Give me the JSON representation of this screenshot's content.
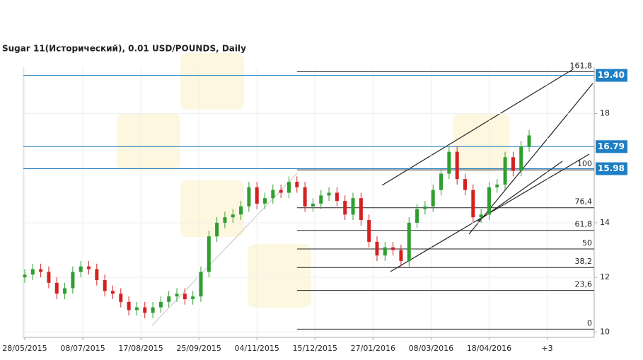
{
  "chart_data": {
    "type": "candlestick",
    "title": "Sugar 11(Исторический), 0.01 USD/POUNDS, Daily",
    "x": [
      0,
      4,
      8,
      12,
      16,
      20,
      24,
      28,
      32,
      36,
      40,
      44,
      48,
      52,
      56,
      60,
      64,
      68,
      72,
      76,
      80,
      84,
      88,
      92,
      96,
      100,
      104,
      108,
      112,
      116,
      120,
      124,
      128,
      132,
      136,
      140,
      144,
      148,
      152,
      156,
      160,
      164,
      168,
      172,
      176,
      180,
      184,
      188,
      192,
      196,
      200,
      204,
      208,
      212,
      216,
      220,
      224,
      228,
      232,
      236,
      240,
      244,
      248,
      252
    ],
    "open": [
      12.0,
      12.1,
      12.3,
      12.2,
      11.8,
      11.4,
      11.6,
      12.2,
      12.4,
      12.3,
      11.9,
      11.5,
      11.4,
      11.1,
      10.8,
      10.9,
      10.7,
      10.9,
      11.1,
      11.3,
      11.4,
      11.2,
      11.3,
      12.2,
      13.5,
      14.0,
      14.2,
      14.3,
      14.6,
      15.3,
      14.7,
      14.9,
      15.2,
      15.1,
      15.5,
      15.3,
      14.6,
      14.7,
      15.0,
      15.1,
      14.8,
      14.3,
      14.9,
      14.1,
      13.3,
      12.8,
      13.1,
      13.0,
      12.6,
      14.0,
      14.5,
      14.6,
      15.2,
      15.8,
      16.6,
      15.6,
      15.2,
      14.2,
      14.3,
      15.3,
      15.4,
      16.4,
      15.9,
      16.8
    ],
    "high": [
      12.3,
      12.5,
      12.5,
      12.4,
      12.0,
      11.8,
      12.4,
      12.6,
      12.6,
      12.5,
      12.1,
      11.7,
      11.6,
      11.3,
      11.1,
      11.1,
      11.1,
      11.3,
      11.5,
      11.6,
      11.6,
      11.5,
      12.4,
      13.7,
      14.2,
      14.4,
      14.5,
      14.8,
      15.5,
      15.5,
      15.1,
      15.4,
      15.4,
      15.7,
      15.7,
      15.5,
      14.9,
      15.2,
      15.3,
      15.3,
      15.0,
      15.1,
      15.1,
      14.3,
      13.5,
      13.3,
      13.3,
      13.2,
      14.2,
      14.7,
      14.8,
      15.4,
      16.0,
      16.8,
      16.8,
      15.8,
      15.4,
      14.5,
      15.5,
      15.6,
      16.6,
      16.6,
      17.0,
      17.4
    ],
    "low": [
      11.8,
      11.9,
      12.0,
      11.6,
      11.2,
      11.2,
      11.4,
      12.0,
      12.1,
      11.7,
      11.3,
      11.2,
      10.9,
      10.6,
      10.6,
      10.5,
      10.5,
      10.7,
      10.9,
      11.1,
      11.0,
      11.0,
      11.1,
      12.0,
      13.3,
      13.8,
      14.0,
      14.1,
      14.4,
      14.5,
      14.5,
      14.7,
      14.9,
      14.9,
      15.1,
      14.4,
      14.4,
      14.5,
      14.8,
      14.6,
      14.1,
      14.1,
      13.9,
      13.1,
      12.6,
      12.6,
      12.8,
      12.4,
      12.4,
      13.8,
      14.3,
      14.4,
      15.0,
      15.6,
      15.4,
      15.0,
      14.0,
      14.0,
      14.1,
      15.1,
      15.2,
      15.7,
      15.7,
      16.6
    ],
    "close": [
      12.1,
      12.3,
      12.2,
      11.8,
      11.4,
      11.6,
      12.2,
      12.4,
      12.3,
      11.9,
      11.5,
      11.4,
      11.1,
      10.8,
      10.9,
      10.7,
      10.9,
      11.1,
      11.3,
      11.4,
      11.2,
      11.3,
      12.2,
      13.5,
      14.0,
      14.2,
      14.3,
      14.6,
      15.3,
      14.7,
      14.9,
      15.2,
      15.1,
      15.5,
      15.3,
      14.6,
      14.7,
      15.0,
      15.1,
      14.8,
      14.3,
      14.9,
      14.1,
      13.3,
      12.8,
      13.1,
      13.0,
      12.6,
      14.0,
      14.5,
      14.6,
      15.2,
      15.8,
      16.6,
      15.6,
      15.2,
      14.2,
      14.3,
      15.3,
      15.4,
      16.4,
      15.9,
      16.8,
      17.2
    ],
    "up_color": "#2e9e2e",
    "down_color": "#d42020",
    "xlim": [
      -0.7,
      284.5
    ],
    "xticks": [
      {
        "value": 0,
        "label": "28/05/2015"
      },
      {
        "value": 29,
        "label": "08/07/2015"
      },
      {
        "value": 58,
        "label": "17/08/2015"
      },
      {
        "value": 87,
        "label": "25/09/2015"
      },
      {
        "value": 116,
        "label": "04/11/2015"
      },
      {
        "value": 145,
        "label": "15/12/2015"
      },
      {
        "value": 174,
        "label": "27/01/2016"
      },
      {
        "value": 203,
        "label": "08/03/2016"
      },
      {
        "value": 232,
        "label": "18/04/2016"
      },
      {
        "value": 261,
        "label": "+3"
      }
    ],
    "ylim": [
      9.8,
      19.7
    ],
    "yticks": [
      10,
      12,
      14,
      18
    ],
    "price_lines": [
      {
        "value": 19.4,
        "label": "19.40"
      },
      {
        "value": 16.79,
        "label": "16.79"
      },
      {
        "value": 15.98,
        "label": "15.98"
      }
    ],
    "price_line_color": "#1f7fc4",
    "fib_levels": [
      {
        "value": 10.1,
        "label": "0"
      },
      {
        "value": 11.52,
        "label": "23,6"
      },
      {
        "value": 12.36,
        "label": "38,2"
      },
      {
        "value": 13.04,
        "label": "50"
      },
      {
        "value": 13.72,
        "label": "61,8"
      },
      {
        "value": 14.55,
        "label": "76,4"
      },
      {
        "value": 15.94,
        "label": "100"
      },
      {
        "value": 19.53,
        "label": "161,8"
      }
    ],
    "grid": true
  }
}
